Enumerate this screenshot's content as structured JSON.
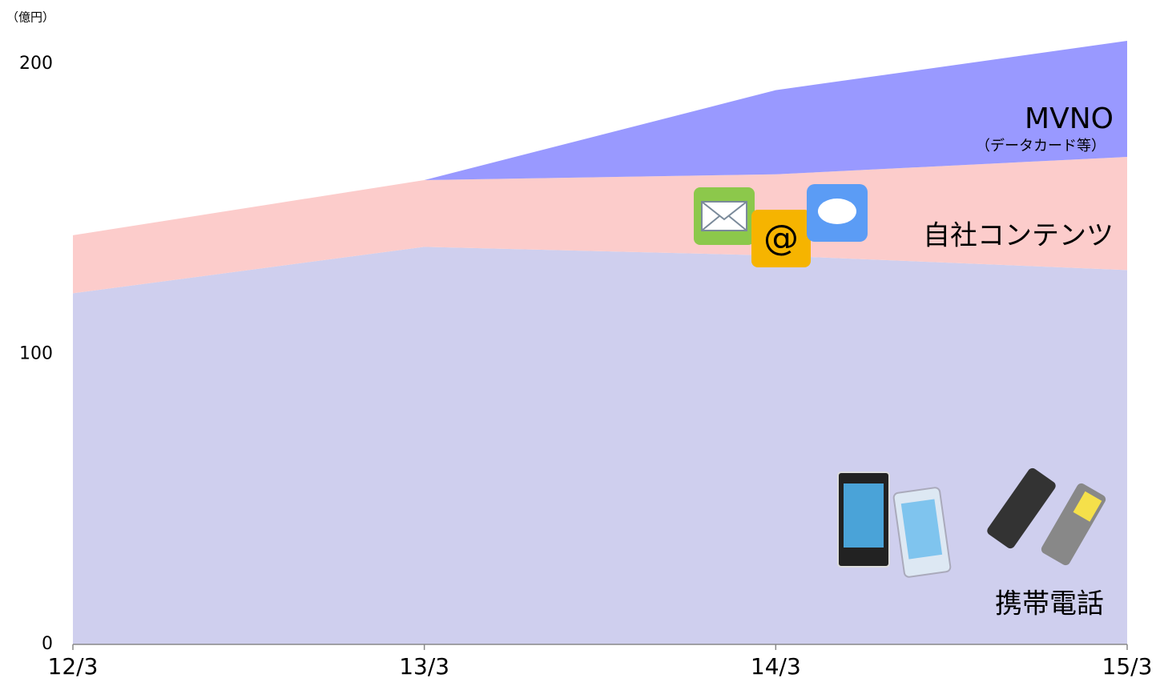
{
  "chart_data": {
    "type": "stacked-area",
    "y_label": "（億円）",
    "categories": [
      "12/3",
      "13/3",
      "14/3",
      "15/3"
    ],
    "series": [
      {
        "name": "携帯電話",
        "color": "#cfcfee",
        "values": [
          121,
          137,
          134,
          129
        ]
      },
      {
        "name": "自社コンテンツ",
        "color": "#fccccb",
        "values": [
          20,
          23,
          28,
          39
        ]
      },
      {
        "name": "MVNO",
        "color": "#9999ff",
        "values": [
          0,
          0,
          29,
          40
        ]
      }
    ],
    "annotation": "（データカード等）",
    "ylim": [
      0,
      210
    ],
    "yticks": [
      0,
      100,
      200
    ]
  }
}
